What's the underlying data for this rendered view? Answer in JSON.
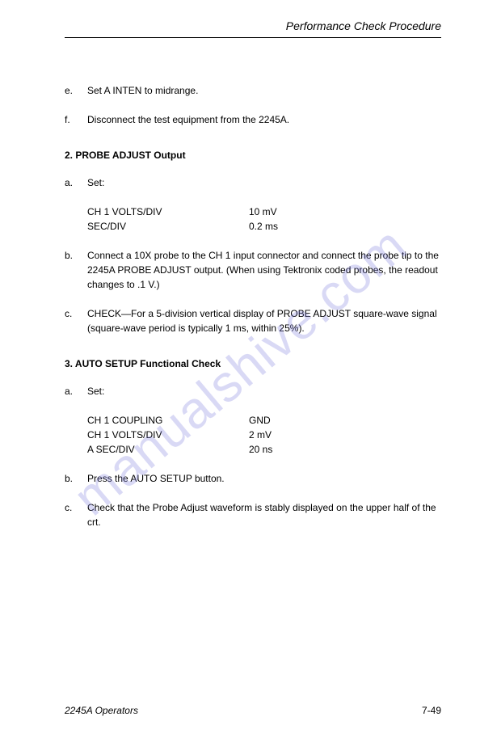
{
  "header": {
    "title": "Performance Check Procedure"
  },
  "watermark": {
    "text": "manualshive.com",
    "color": "rgba(120,120,220,0.28)"
  },
  "section1_items": [
    {
      "marker": "e.",
      "text": "Set A INTEN to midrange."
    },
    {
      "marker": "f.",
      "text": "Disconnect the test equipment from the 2245A."
    }
  ],
  "section2": {
    "heading": "2. PROBE ADJUST Output",
    "item_a": {
      "marker": "a.",
      "text": "Set:"
    },
    "settings": [
      {
        "label": "CH 1 VOLTS/DIV",
        "value": "10 mV"
      },
      {
        "label": "SEC/DIV",
        "value": "0.2 ms"
      }
    ],
    "item_b": {
      "marker": "b.",
      "text": "Connect a 10X probe to the CH 1 input connector and connect the probe tip to the 2245A PROBE ADJUST output. (When using Tektronix coded probes, the readout changes to .1 V.)"
    },
    "item_c": {
      "marker": "c.",
      "text": "CHECK—For a 5-division vertical display of PROBE ADJUST square-wave signal (square-wave period is typically 1 ms, within 25%)."
    }
  },
  "section3": {
    "heading": "3. AUTO SETUP Functional Check",
    "item_a": {
      "marker": "a.",
      "text": "Set:"
    },
    "settings": [
      {
        "label": "CH 1 COUPLING",
        "value": "GND"
      },
      {
        "label": "CH 1 VOLTS/DIV",
        "value": "2 mV"
      },
      {
        "label": "A SEC/DIV",
        "value": "20 ns"
      }
    ],
    "item_b": {
      "marker": "b.",
      "text": "Press the AUTO SETUP button."
    },
    "item_c": {
      "marker": "c.",
      "text": "Check that the Probe Adjust waveform is stably displayed on the upper half of the crt."
    }
  },
  "footer": {
    "left": "2245A Operators",
    "right": "7-49"
  }
}
